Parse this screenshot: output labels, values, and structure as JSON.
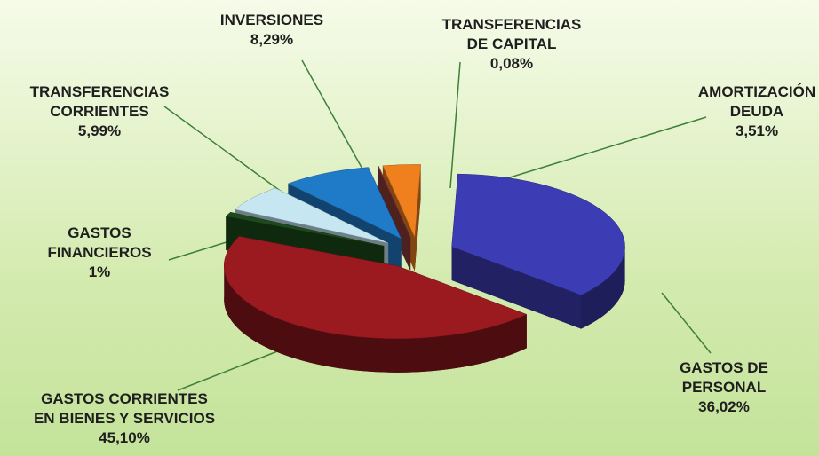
{
  "chart_data": {
    "type": "pie",
    "categories": [
      "GASTOS DE\nPERSONAL",
      "GASTOS CORRIENTES\nEN BIENES Y SERVICIOS",
      "GASTOS\nFINANCIEROS",
      "TRANSFERENCIAS\nCORRIENTES",
      "INVERSIONES",
      "TRANSFERENCIAS\nDE CAPITAL",
      "AMORTIZACIÓN\nDEUDA"
    ],
    "values": [
      36.02,
      45.1,
      1,
      5.99,
      8.29,
      0.08,
      3.51
    ],
    "value_labels": [
      "36,02%",
      "45,10%",
      "1%",
      "5,99%",
      "8,29%",
      "0,08%",
      "3,51%"
    ],
    "colors": [
      "#3c3cb4",
      "#9a1a20",
      "#1c4a1c",
      "#c6e6f2",
      "#1f7ac8",
      "#8e3a3a",
      "#f0801e"
    ]
  }
}
